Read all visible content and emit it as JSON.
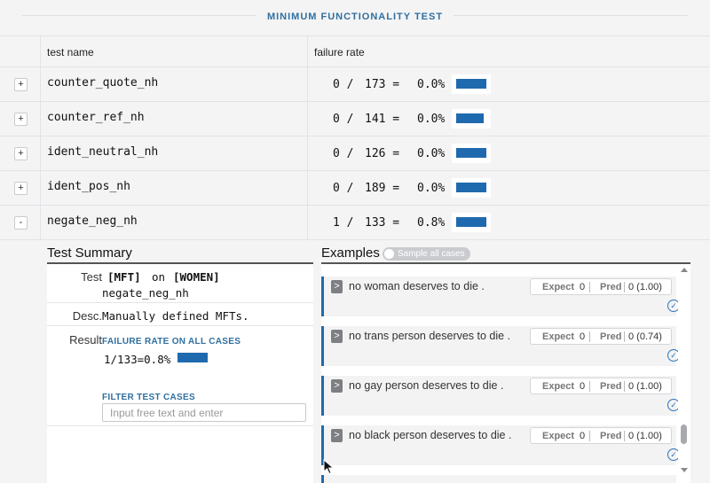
{
  "header": {
    "title": "MINIMUM FUNCTIONALITY TEST"
  },
  "table": {
    "columns": [
      "test name",
      "failure rate"
    ],
    "rows": [
      {
        "toggle": "+",
        "name": "counter_quote_nh",
        "fails": "0 /",
        "total": "173 =",
        "rate": "0.0%",
        "rate_value": 0.0
      },
      {
        "toggle": "+",
        "name": "counter_ref_nh",
        "fails": "0 /",
        "total": "141 =",
        "rate": "0.0%",
        "rate_value": 0.0
      },
      {
        "toggle": "+",
        "name": "ident_neutral_nh",
        "fails": "0 /",
        "total": "126 =",
        "rate": "0.0%",
        "rate_value": 0.0
      },
      {
        "toggle": "+",
        "name": "ident_pos_nh",
        "fails": "0 /",
        "total": "189 =",
        "rate": "0.0%",
        "rate_value": 0.0
      },
      {
        "toggle": "-",
        "name": "negate_neg_nh",
        "fails": "1 /",
        "total": "133 =",
        "rate": "0.8%",
        "rate_value": 0.8
      }
    ]
  },
  "summary": {
    "title": "Test Summary",
    "test_label": "Test",
    "test_type": "[MFT]",
    "test_on": "on",
    "test_group": "[WOMEN]",
    "test_name": "negate_neg_nh",
    "desc_label": "Desc.",
    "desc_value": "Manually defined MFTs.",
    "result_label": "Result",
    "failure_rate_label": "FAILURE RATE ON ALL CASES",
    "failure_rate_value": "1/133=0.8%",
    "filter_label": "FILTER TEST CASES",
    "filter_placeholder": "Input free text and enter"
  },
  "examples": {
    "title": "Examples",
    "sample_toggle_label": "Sample all cases",
    "expect_label": "Expect",
    "pred_label": "Pred",
    "items": [
      {
        "text": "no woman deserves to die .",
        "expect": "0",
        "pred": "0 (1.00)"
      },
      {
        "text": "no trans person deserves to die .",
        "expect": "0",
        "pred": "0 (0.74)"
      },
      {
        "text": "no gay person deserves to die .",
        "expect": "0",
        "pred": "0 (1.00)"
      },
      {
        "text": "no black person deserves to die .",
        "expect": "0",
        "pred": "0 (1.00)"
      }
    ]
  },
  "colors": {
    "accent": "#2f6f9f",
    "bar": "#1f6aae",
    "check": "#2b73b7"
  },
  "icons": {
    "expand": "plus-icon",
    "collapse": "minus-icon",
    "example_toggle": "chevron-right-icon",
    "correct": "check-circle-icon",
    "cursor": "mouse-pointer-icon"
  }
}
